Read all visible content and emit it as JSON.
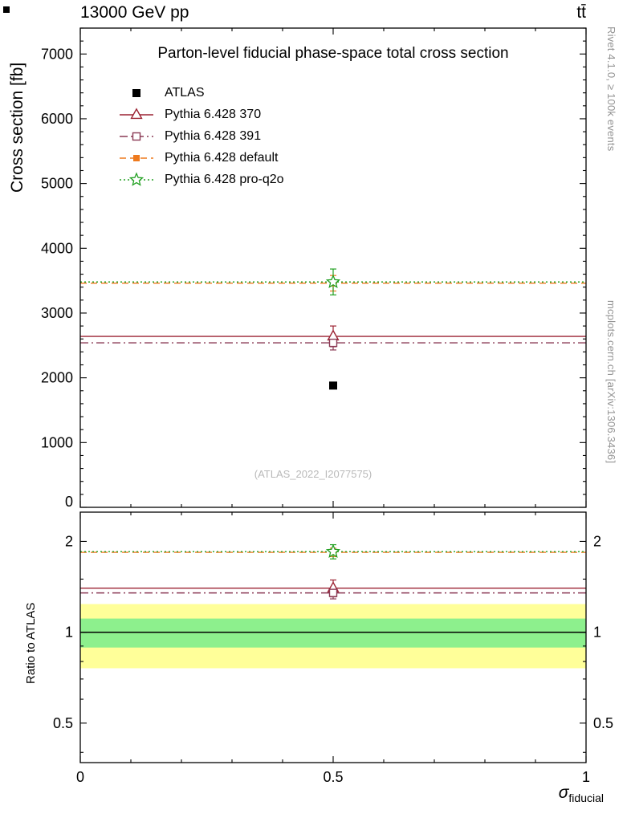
{
  "header": {
    "collision": "13000 GeV pp",
    "process": "tt̄"
  },
  "side_labels": {
    "top": "Rivet 4.1.0, ≥ 100k events",
    "bottom": "mcplots.cern.ch [arXiv:1306.3436]"
  },
  "chart_data": [
    {
      "type": "scatter",
      "panel": "main",
      "title": "Parton-level fiducial phase-space total cross section",
      "ylabel": "Cross section [fb]",
      "watermark": "(ATLAS_2022_I2077575)",
      "xlim": [
        0,
        1
      ],
      "ylim": [
        0,
        7400
      ],
      "yscale": "linear",
      "yticks": [
        0,
        1000,
        2000,
        3000,
        4000,
        5000,
        6000,
        7000
      ],
      "ytick_minor_step": 200,
      "xticks": [
        0,
        0.5,
        1
      ],
      "xtick_minor_step": 0.1,
      "x": 0.5,
      "series": [
        {
          "name": "ATLAS",
          "color": "#000000",
          "marker": "filled-square",
          "line": "none",
          "y": 1880,
          "yerr": 0
        },
        {
          "name": "Pythia 6.428 370",
          "color": "#9c2333",
          "marker": "open-triangle",
          "line": "solid",
          "y": 2640,
          "yerr": 160
        },
        {
          "name": "Pythia 6.428 391",
          "color": "#8a3a55",
          "marker": "open-square",
          "line": "dash-dot",
          "y": 2540,
          "yerr": 110
        },
        {
          "name": "Pythia 6.428 default",
          "color": "#ee7a1e",
          "marker": "filled-square",
          "line": "dashed",
          "y": 3460,
          "yerr": 120
        },
        {
          "name": "Pythia 6.428 pro-q2o",
          "color": "#22a022",
          "marker": "open-star",
          "line": "dotted",
          "y": 3480,
          "yerr": 200
        }
      ]
    },
    {
      "type": "ratio",
      "panel": "ratio",
      "ylabel": "Ratio to ATLAS",
      "xlabel_symbol": "σ",
      "xlabel_subscript": "fiducial",
      "xlim": [
        0,
        1
      ],
      "ylim": [
        0.37,
        2.5
      ],
      "yscale": "log",
      "yticks": [
        0.5,
        1,
        2
      ],
      "ytick_minor": [
        0.4,
        0.6,
        0.7,
        0.8,
        0.9,
        1.5
      ],
      "xticks": [
        0,
        0.5,
        1
      ],
      "xtick_minor_step": 0.1,
      "x": 0.5,
      "reference_line": 1,
      "bands": [
        {
          "lo": 0.76,
          "hi": 1.24,
          "color": "#ffff99"
        },
        {
          "lo": 0.89,
          "hi": 1.11,
          "color": "#8df08d"
        }
      ],
      "series": [
        {
          "name": "Pythia 6.428 370",
          "color": "#9c2333",
          "marker": "open-triangle",
          "line": "solid",
          "y": 1.4,
          "yerr": 0.09
        },
        {
          "name": "Pythia 6.428 391",
          "color": "#8a3a55",
          "marker": "open-square",
          "line": "dash-dot",
          "y": 1.35,
          "yerr": 0.06
        },
        {
          "name": "Pythia 6.428 default",
          "color": "#ee7a1e",
          "marker": "filled-square",
          "line": "dashed",
          "y": 1.84,
          "yerr": 0.06
        },
        {
          "name": "Pythia 6.428 pro-q2o",
          "color": "#22a022",
          "marker": "open-star",
          "line": "dotted",
          "y": 1.85,
          "yerr": 0.1
        }
      ]
    }
  ]
}
